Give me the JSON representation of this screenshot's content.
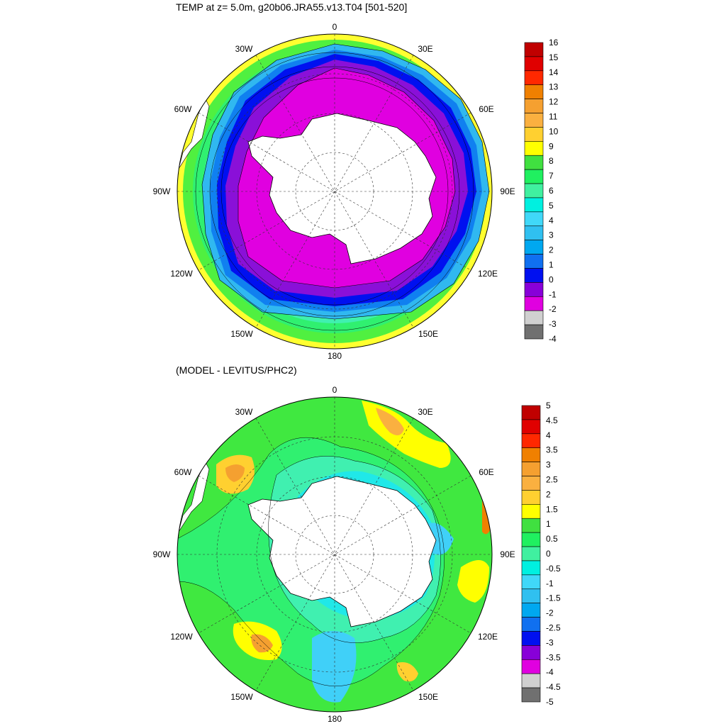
{
  "panels": [
    {
      "title": "TEMP at z=   5.0m, g20b06.JRA55.v13.T04 [501-520]",
      "lon_labels": {
        "0": "0",
        "30E": "30E",
        "60E": "60E",
        "90E": "90E",
        "120E": "120E",
        "150E": "150E",
        "180": "180",
        "150W": "150W",
        "120W": "120W",
        "90W": "90W",
        "60W": "60W",
        "30W": "30W"
      },
      "colorbar": {
        "labels": [
          "16",
          "15",
          "14",
          "13",
          "12",
          "11",
          "10",
          "9",
          "8",
          "7",
          "6",
          "5",
          "4",
          "3",
          "2",
          "1",
          "0",
          "-1",
          "-2",
          "-3",
          "-4"
        ],
        "colors": [
          "#c00000",
          "#e00000",
          "#ff2800",
          "#f08000",
          "#f5a030",
          "#fab040",
          "#ffd030",
          "#ffff00",
          "#40e040",
          "#20f060",
          "#40f0a0",
          "#00f0e0",
          "#40d8f8",
          "#30c0f0",
          "#00a8f0",
          "#1070f0",
          "#0010f0",
          "#8800d8",
          "#e000e0",
          "#d0d0d0",
          "#707070"
        ]
      },
      "field": "temperature_surface"
    },
    {
      "title": "(MODEL - LEVITUS/PHC2)",
      "lon_labels": {
        "0": "0",
        "30E": "30E",
        "60E": "60E",
        "90E": "90E",
        "120E": "120E",
        "150E": "150E",
        "180": "180",
        "150W": "150W",
        "120W": "120W",
        "90W": "90W",
        "60W": "60W",
        "30W": "30W"
      },
      "colorbar": {
        "labels": [
          "5",
          "4.5",
          "4",
          "3.5",
          "3",
          "2.5",
          "2",
          "1.5",
          "1",
          "0.5",
          "0",
          "-0.5",
          "-1",
          "-1.5",
          "-2",
          "-2.5",
          "-3",
          "-3.5",
          "-4",
          "-4.5",
          "-5"
        ],
        "colors": [
          "#c00000",
          "#e00000",
          "#ff2800",
          "#f08000",
          "#f5a030",
          "#fab040",
          "#ffd030",
          "#ffff00",
          "#40e040",
          "#20f060",
          "#40f0a0",
          "#00f0e0",
          "#40d8f8",
          "#30c0f0",
          "#00a8f0",
          "#1070f0",
          "#0010f0",
          "#8800d8",
          "#e000e0",
          "#d0d0d0",
          "#707070"
        ]
      },
      "field": "temperature_difference"
    }
  ]
}
